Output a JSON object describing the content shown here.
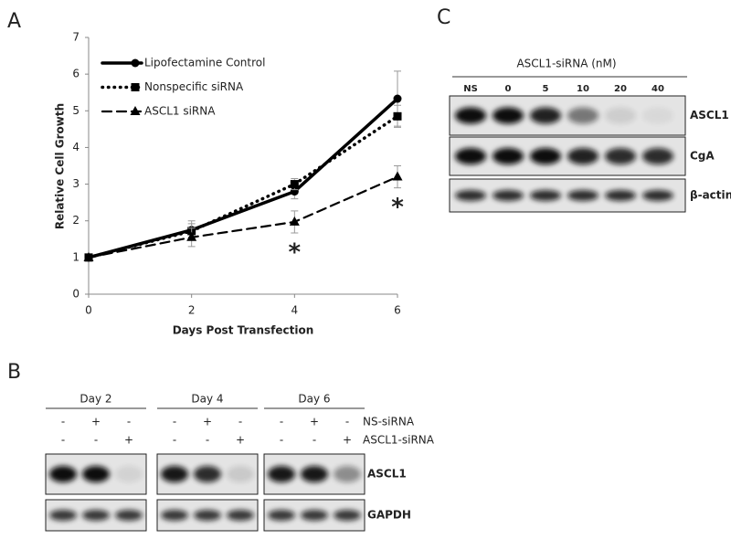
{
  "panels": {
    "a": "A",
    "b": "B",
    "c": "C"
  },
  "chart_data": {
    "type": "line",
    "y_label": "Relative Cell Growth",
    "x_label": "Days Post Transfection",
    "x": [
      0,
      2,
      4,
      6
    ],
    "xlim": [
      0,
      6
    ],
    "xticks": [
      0,
      2,
      4,
      6
    ],
    "ylim": [
      0,
      7
    ],
    "yticks": [
      0,
      1,
      2,
      3,
      4,
      5,
      6,
      7
    ],
    "grid": false,
    "legend": "upper left",
    "series": [
      {
        "name": "Lipofectamine Control",
        "color": "#000000",
        "line_style": "solid",
        "marker": "circle",
        "values": [
          1,
          1.75,
          2.8,
          5.33
        ],
        "errors": [
          0,
          0.25,
          0.2,
          0.75
        ]
      },
      {
        "name": "Nonspecific siRNA",
        "color": "#000000",
        "line_style": "dotted",
        "marker": "square",
        "values": [
          1,
          1.72,
          3.0,
          4.85
        ],
        "errors": [
          0,
          0.2,
          0.15,
          0.3
        ]
      },
      {
        "name": "ASCL1 siRNA",
        "color": "#000000",
        "line_style": "dashed",
        "marker": "triangle",
        "values": [
          1,
          1.55,
          1.97,
          3.2
        ],
        "errors": [
          0,
          0.25,
          0.3,
          0.3
        ]
      }
    ],
    "annotations": [
      {
        "text": "*",
        "x": 4
      },
      {
        "text": "*",
        "x": 6
      }
    ]
  },
  "blot_b": {
    "groups": [
      {
        "label": "Day 2",
        "ns": [
          "-",
          "+",
          "-"
        ],
        "ascl1": [
          "-",
          "-",
          "+"
        ]
      },
      {
        "label": "Day 4",
        "ns": [
          "-",
          "+",
          "-"
        ],
        "ascl1": [
          "-",
          "-",
          "+"
        ]
      },
      {
        "label": "Day 6",
        "ns": [
          "-",
          "+",
          "-"
        ],
        "ascl1": [
          "-",
          "-",
          "+"
        ]
      }
    ],
    "row_labels": [
      "NS-siRNA",
      "ASCL1-siRNA"
    ],
    "bands": [
      "ASCL1",
      "GAPDH"
    ]
  },
  "blot_c": {
    "header": "ASCL1-siRNA (nM)",
    "lanes": [
      "NS",
      "0",
      "5",
      "10",
      "20",
      "40"
    ],
    "bands": [
      "ASCL1",
      "CgA",
      "β-actin"
    ]
  }
}
